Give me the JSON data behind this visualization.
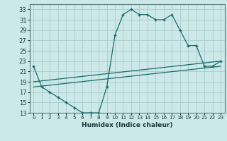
{
  "title": "",
  "xlabel": "Humidex (Indice chaleur)",
  "bg_color": "#cce8e8",
  "grid_color": "#aacccc",
  "line_color": "#1a6b6b",
  "series_main": {
    "x": [
      0,
      1,
      2,
      3,
      4,
      5,
      6,
      7,
      8,
      9,
      10,
      11,
      12,
      13,
      14,
      15,
      16,
      17,
      18,
      19,
      20,
      21,
      22,
      23
    ],
    "y": [
      22,
      18,
      17,
      16,
      15,
      14,
      13,
      13,
      13,
      18,
      28,
      32,
      33,
      32,
      32,
      31,
      31,
      32,
      29,
      26,
      26,
      22,
      22,
      23
    ]
  },
  "series_trend1": {
    "x": [
      0,
      23
    ],
    "y": [
      19,
      23
    ]
  },
  "series_trend2": {
    "x": [
      0,
      23
    ],
    "y": [
      18,
      22
    ]
  },
  "ylim": [
    13,
    34
  ],
  "yticks": [
    13,
    15,
    17,
    19,
    21,
    23,
    25,
    27,
    29,
    31,
    33
  ],
  "xlim": [
    -0.5,
    23.5
  ],
  "xticks": [
    0,
    1,
    2,
    3,
    4,
    5,
    6,
    7,
    8,
    9,
    10,
    11,
    12,
    13,
    14,
    15,
    16,
    17,
    18,
    19,
    20,
    21,
    22,
    23
  ]
}
